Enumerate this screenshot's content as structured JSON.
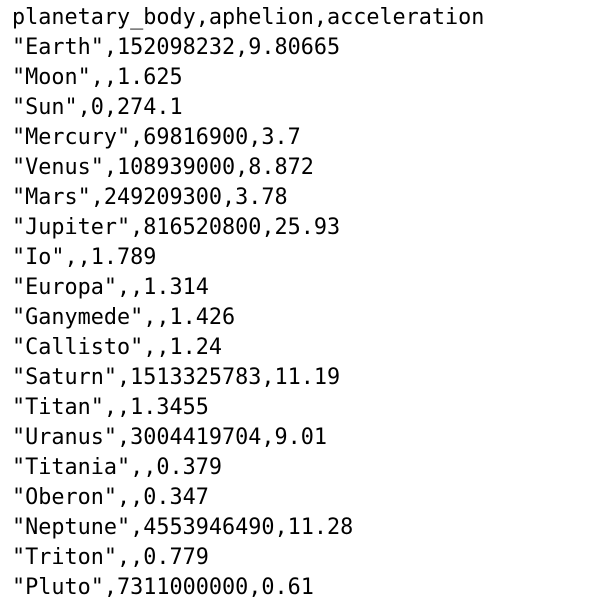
{
  "file": {
    "lines": [
      "planetary_body,aphelion,acceleration",
      "\"Earth\",152098232,9.80665",
      "\"Moon\",,1.625",
      "\"Sun\",0,274.1",
      "\"Mercury\",69816900,3.7",
      "\"Venus\",108939000,8.872",
      "\"Mars\",249209300,3.78",
      "\"Jupiter\",816520800,25.93",
      "\"Io\",,1.789",
      "\"Europa\",,1.314",
      "\"Ganymede\",,1.426",
      "\"Callisto\",,1.24",
      "\"Saturn\",1513325783,11.19",
      "\"Titan\",,1.3455",
      "\"Uranus\",3004419704,9.01",
      "\"Titania\",,0.379",
      "\"Oberon\",,0.347",
      "\"Neptune\",4553946490,11.28",
      "\"Triton\",,0.779",
      "\"Pluto\",7311000000,0.61"
    ]
  }
}
